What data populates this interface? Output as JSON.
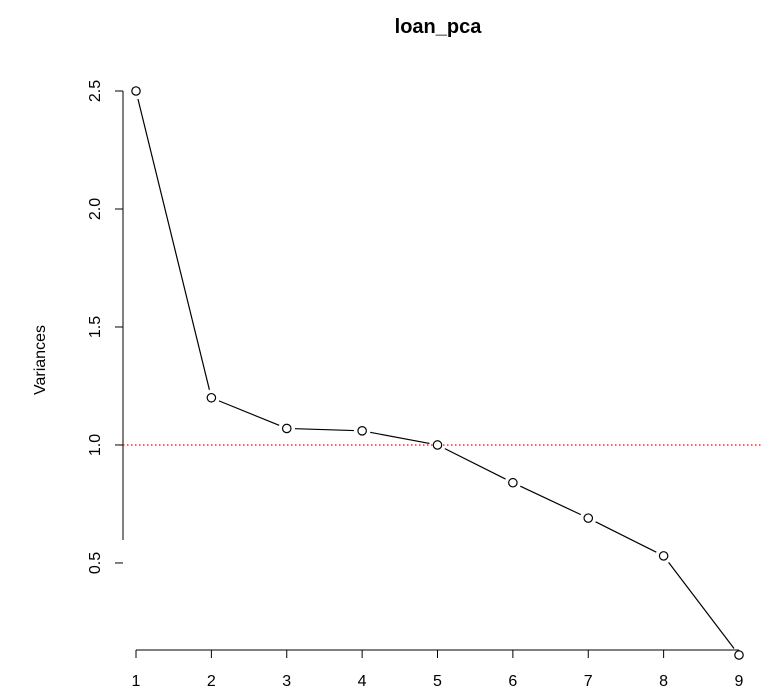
{
  "chart_data": {
    "type": "line",
    "title": "loan_pca",
    "xlabel": "",
    "ylabel": "Variances",
    "x": [
      1,
      2,
      3,
      4,
      5,
      6,
      7,
      8,
      9
    ],
    "series": [
      {
        "values": [
          2.5,
          1.2,
          1.07,
          1.06,
          1.0,
          0.84,
          0.69,
          0.53,
          0.11
        ]
      }
    ],
    "xticks": [
      "1",
      "2",
      "3",
      "4",
      "5",
      "6",
      "7",
      "8",
      "9"
    ],
    "yticks": [
      "0.5",
      "1.0",
      "1.5",
      "2.0",
      "2.5"
    ],
    "ytick_values": [
      0.5,
      1.0,
      1.5,
      2.0,
      2.5
    ],
    "ylim": [
      0.11,
      2.5
    ],
    "xlim": [
      1,
      9
    ],
    "reference_line": {
      "y": 1.0,
      "color": "#ff0000",
      "style": "dotted"
    },
    "marker": "open-circle",
    "grid": false,
    "legend": "none"
  }
}
